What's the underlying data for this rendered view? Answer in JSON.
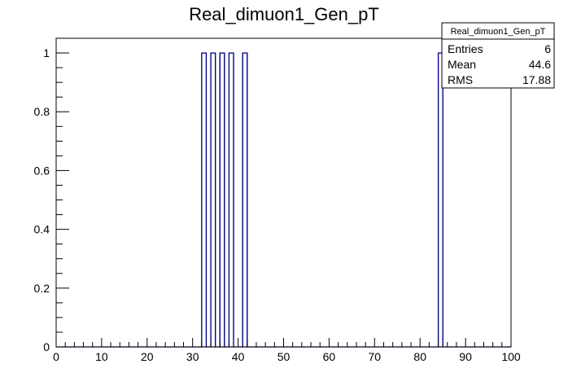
{
  "chart_data": {
    "type": "bar",
    "title": "Real_dimuon1_Gen_pT",
    "xlabel": "",
    "ylabel": "",
    "xlim": [
      0,
      100
    ],
    "ylim": [
      0,
      1.05
    ],
    "bin_width": 1,
    "x_ticks": [
      0,
      10,
      20,
      30,
      40,
      50,
      60,
      70,
      80,
      90,
      100
    ],
    "x_tick_labels": [
      "0",
      "10",
      "20",
      "30",
      "40",
      "50",
      "60",
      "70",
      "80",
      "90",
      "100"
    ],
    "y_ticks": [
      0,
      0.2,
      0.4,
      0.6,
      0.8,
      1
    ],
    "y_tick_labels": [
      "0",
      "0.2",
      "0.4",
      "0.6",
      "0.8",
      "1"
    ],
    "series": [
      {
        "bins": [
          {
            "x_low": 32,
            "x_high": 33,
            "value": 1
          },
          {
            "x_low": 34,
            "x_high": 35,
            "value": 1
          },
          {
            "x_low": 36,
            "x_high": 37,
            "value": 1
          },
          {
            "x_low": 38,
            "x_high": 39,
            "value": 1
          },
          {
            "x_low": 41,
            "x_high": 42,
            "value": 1
          },
          {
            "x_low": 84,
            "x_high": 85,
            "value": 1
          }
        ]
      }
    ],
    "line_color": "#000080",
    "grid": false
  },
  "stats_box": {
    "title": "Real_dimuon1_Gen_pT",
    "rows": [
      {
        "label": "Entries",
        "value": "6"
      },
      {
        "label": "Mean",
        "value": "44.6"
      },
      {
        "label": "RMS",
        "value": "17.88"
      }
    ]
  }
}
